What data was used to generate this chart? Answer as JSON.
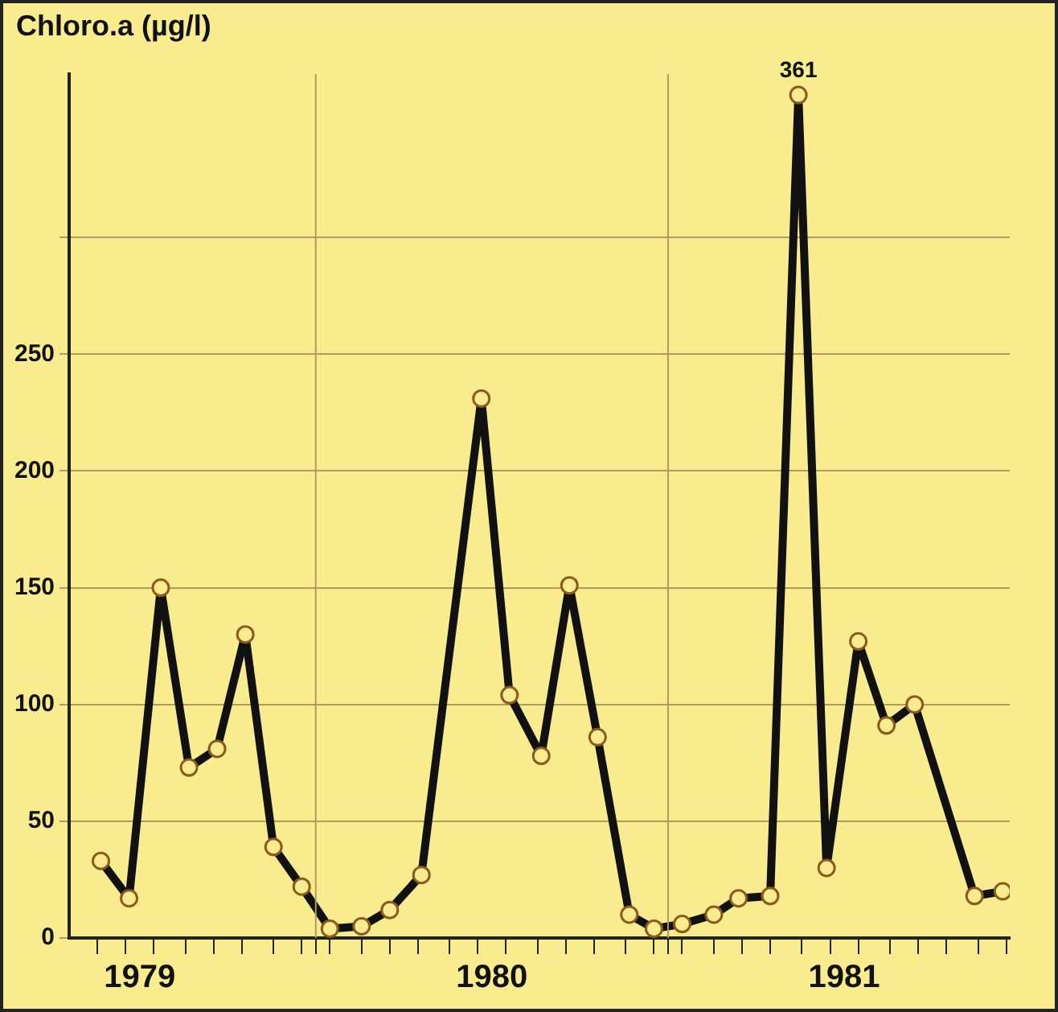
{
  "chart_data": {
    "type": "line",
    "ylabel": "Chloro.a (µg/l)",
    "x": [
      1979.39,
      1979.47,
      1979.56,
      1979.64,
      1979.72,
      1979.8,
      1979.88,
      1979.96,
      1980.04,
      1980.13,
      1980.21,
      1980.3,
      1980.47,
      1980.55,
      1980.64,
      1980.72,
      1980.8,
      1980.89,
      1980.96,
      1981.04,
      1981.13,
      1981.2,
      1981.29,
      1981.37,
      1981.45,
      1981.54,
      1981.62,
      1981.7,
      1981.87,
      1981.95
    ],
    "values": [
      33,
      17,
      150,
      73,
      81,
      130,
      39,
      22,
      4,
      5,
      12,
      27,
      231,
      104,
      78,
      151,
      86,
      10,
      4,
      6,
      10,
      17,
      18,
      361,
      30,
      127,
      91,
      100,
      18,
      20
    ],
    "value_labels": [
      null,
      null,
      null,
      null,
      null,
      null,
      null,
      null,
      null,
      null,
      null,
      null,
      null,
      null,
      null,
      null,
      null,
      null,
      null,
      null,
      null,
      null,
      null,
      "361",
      null,
      null,
      null,
      null,
      null,
      null
    ],
    "color": "#111111",
    "marker": "circle",
    "line_style": "solid",
    "grid": "y",
    "legend": false,
    "xlim": [
      1979.3,
      1981.97
    ],
    "xticks": [
      {
        "value": 1979.38,
        "label": null
      },
      {
        "value": 1979.46,
        "label": null
      },
      {
        "value": 1979.5,
        "label": "1979"
      },
      {
        "value": 1979.54,
        "label": null
      },
      {
        "value": 1979.63,
        "label": null
      },
      {
        "value": 1979.71,
        "label": null
      },
      {
        "value": 1979.79,
        "label": null
      },
      {
        "value": 1979.88,
        "label": null
      },
      {
        "value": 1979.96,
        "label": null
      },
      {
        "value": 1980,
        "label": null
      },
      {
        "value": 1980.04,
        "label": null
      },
      {
        "value": 1980.13,
        "label": null
      },
      {
        "value": 1980.21,
        "label": null
      },
      {
        "value": 1980.29,
        "label": null
      },
      {
        "value": 1980.38,
        "label": null
      },
      {
        "value": 1980.46,
        "label": null
      },
      {
        "value": 1980.5,
        "label": "1980"
      },
      {
        "value": 1980.54,
        "label": null
      },
      {
        "value": 1980.63,
        "label": null
      },
      {
        "value": 1980.71,
        "label": null
      },
      {
        "value": 1980.79,
        "label": null
      },
      {
        "value": 1980.88,
        "label": null
      },
      {
        "value": 1980.96,
        "label": null
      },
      {
        "value": 1981,
        "label": null
      },
      {
        "value": 1981.04,
        "label": null
      },
      {
        "value": 1981.13,
        "label": null
      },
      {
        "value": 1981.21,
        "label": null
      },
      {
        "value": 1981.29,
        "label": null
      },
      {
        "value": 1981.38,
        "label": null
      },
      {
        "value": 1981.46,
        "label": null
      },
      {
        "value": 1981.5,
        "label": "1981"
      },
      {
        "value": 1981.54,
        "label": null
      },
      {
        "value": 1981.63,
        "label": null
      },
      {
        "value": 1981.71,
        "label": null
      },
      {
        "value": 1981.79,
        "label": null
      },
      {
        "value": 1981.88,
        "label": null
      },
      {
        "value": 1981.96,
        "label": null
      }
    ],
    "ylim": [
      0,
      370
    ],
    "yticks": [
      0,
      50,
      100,
      150,
      200,
      250,
      {
        "value": 300,
        "label": null
      }
    ],
    "ref_lines": [
      {
        "axis": "x",
        "value": 1980,
        "label": null,
        "color": "#b39a5e"
      },
      {
        "axis": "x",
        "value": 1981,
        "label": null,
        "color": "#b39a5e"
      }
    ]
  }
}
